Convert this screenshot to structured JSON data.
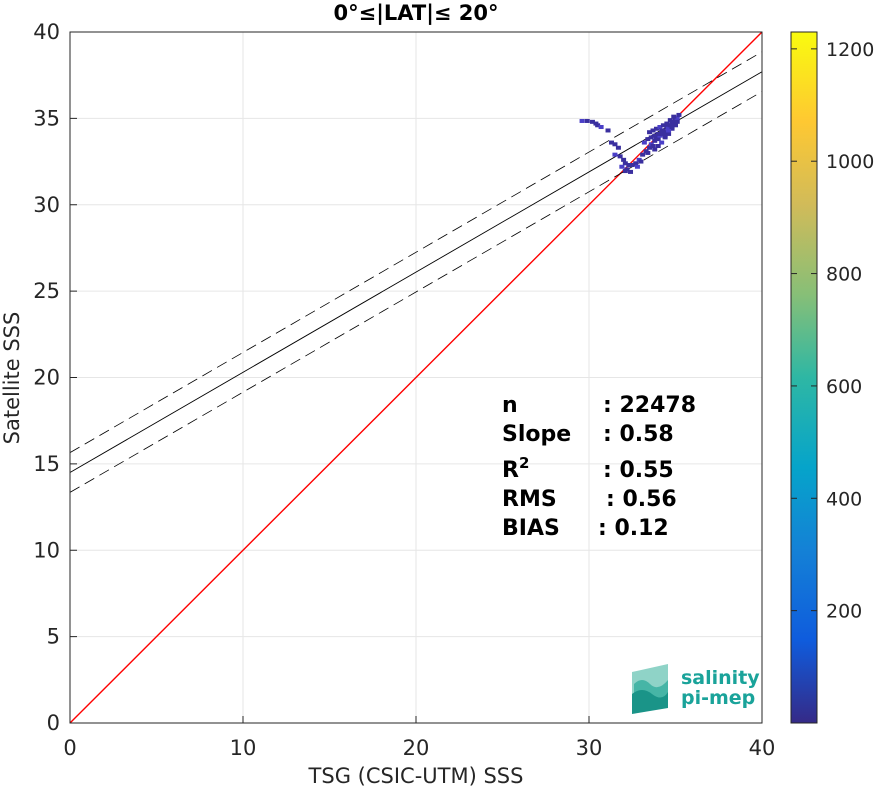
{
  "chart_data": {
    "type": "scatter",
    "title": "0°≤|LAT|≤ 20°",
    "xlabel": "TSG (CSIC-UTM) SSS",
    "ylabel": "Satellite SSS",
    "xlim": [
      0,
      40
    ],
    "ylim": [
      0,
      40
    ],
    "xticks": [
      "0",
      "10",
      "20",
      "30",
      "40"
    ],
    "yticks": [
      "0",
      "5",
      "10",
      "15",
      "20",
      "25",
      "30",
      "35",
      "40"
    ],
    "grid": true,
    "identity_line_color": "#ff0000",
    "regression": {
      "slope": 0.58,
      "intercept": 14.5,
      "band_offset": 1.15
    },
    "colorbar": {
      "min": 0,
      "max": 1230,
      "ticks": [
        "200",
        "400",
        "600",
        "800",
        "1000",
        "1200"
      ],
      "colormap": "parula"
    },
    "stats": [
      {
        "label": "n",
        "value": ": 22478"
      },
      {
        "label": "Slope",
        "value": ": 0.58"
      },
      {
        "label": "R",
        "sup": "2",
        "value": ": 0.55"
      },
      {
        "label": "RMS",
        "value": ": 0.56"
      },
      {
        "label": "BIAS",
        "value": ": 0.12"
      }
    ],
    "points": [
      [
        29.6,
        34.85
      ],
      [
        29.9,
        34.85
      ],
      [
        30.2,
        34.8
      ],
      [
        30.4,
        34.7
      ],
      [
        30.5,
        34.6
      ],
      [
        30.7,
        34.5
      ],
      [
        31.1,
        34.3
      ],
      [
        31.3,
        33.6
      ],
      [
        31.5,
        33.5
      ],
      [
        31.7,
        33.3
      ],
      [
        31.5,
        32.9
      ],
      [
        31.8,
        32.8
      ],
      [
        32.0,
        32.6
      ],
      [
        32.1,
        32.4
      ],
      [
        32.3,
        32.3
      ],
      [
        31.9,
        32.2
      ],
      [
        32.1,
        31.95
      ],
      [
        32.2,
        32.05
      ],
      [
        32.5,
        32.3
      ],
      [
        32.7,
        32.4
      ],
      [
        32.9,
        32.6
      ],
      [
        33.1,
        32.9
      ],
      [
        33.3,
        33.1
      ],
      [
        33.4,
        33.0
      ],
      [
        33.5,
        33.3
      ],
      [
        33.6,
        33.5
      ],
      [
        33.7,
        33.4
      ],
      [
        33.8,
        33.7
      ],
      [
        33.9,
        33.9
      ],
      [
        34.0,
        33.8
      ],
      [
        34.1,
        34.0
      ],
      [
        34.2,
        34.1
      ],
      [
        34.3,
        34.3
      ],
      [
        34.4,
        34.2
      ],
      [
        34.5,
        34.5
      ],
      [
        34.6,
        34.4
      ],
      [
        34.7,
        34.6
      ],
      [
        34.8,
        34.7
      ],
      [
        34.9,
        34.8
      ],
      [
        35.0,
        34.9
      ],
      [
        35.1,
        35.0
      ],
      [
        35.2,
        35.2
      ],
      [
        33.5,
        34.2
      ],
      [
        33.7,
        34.3
      ],
      [
        33.9,
        34.4
      ],
      [
        34.1,
        34.5
      ],
      [
        34.3,
        34.6
      ],
      [
        34.5,
        34.7
      ],
      [
        34.7,
        34.9
      ],
      [
        34.9,
        35.1
      ],
      [
        34.2,
        33.6
      ],
      [
        34.4,
        33.9
      ],
      [
        34.6,
        34.1
      ],
      [
        33.8,
        33.2
      ],
      [
        34.0,
        33.4
      ],
      [
        32.8,
        32.2
      ],
      [
        33.0,
        32.5
      ],
      [
        32.4,
        31.9
      ],
      [
        34.8,
        34.4
      ],
      [
        35.0,
        34.6
      ],
      [
        33.2,
        33.6
      ],
      [
        33.4,
        33.8
      ],
      [
        34.0,
        34.1
      ],
      [
        34.2,
        34.3
      ],
      [
        34.4,
        34.0
      ],
      [
        34.6,
        34.3
      ],
      [
        34.8,
        34.5
      ],
      [
        35.1,
        34.8
      ],
      [
        33.6,
        33.9
      ],
      [
        33.8,
        34.0
      ]
    ]
  }
}
